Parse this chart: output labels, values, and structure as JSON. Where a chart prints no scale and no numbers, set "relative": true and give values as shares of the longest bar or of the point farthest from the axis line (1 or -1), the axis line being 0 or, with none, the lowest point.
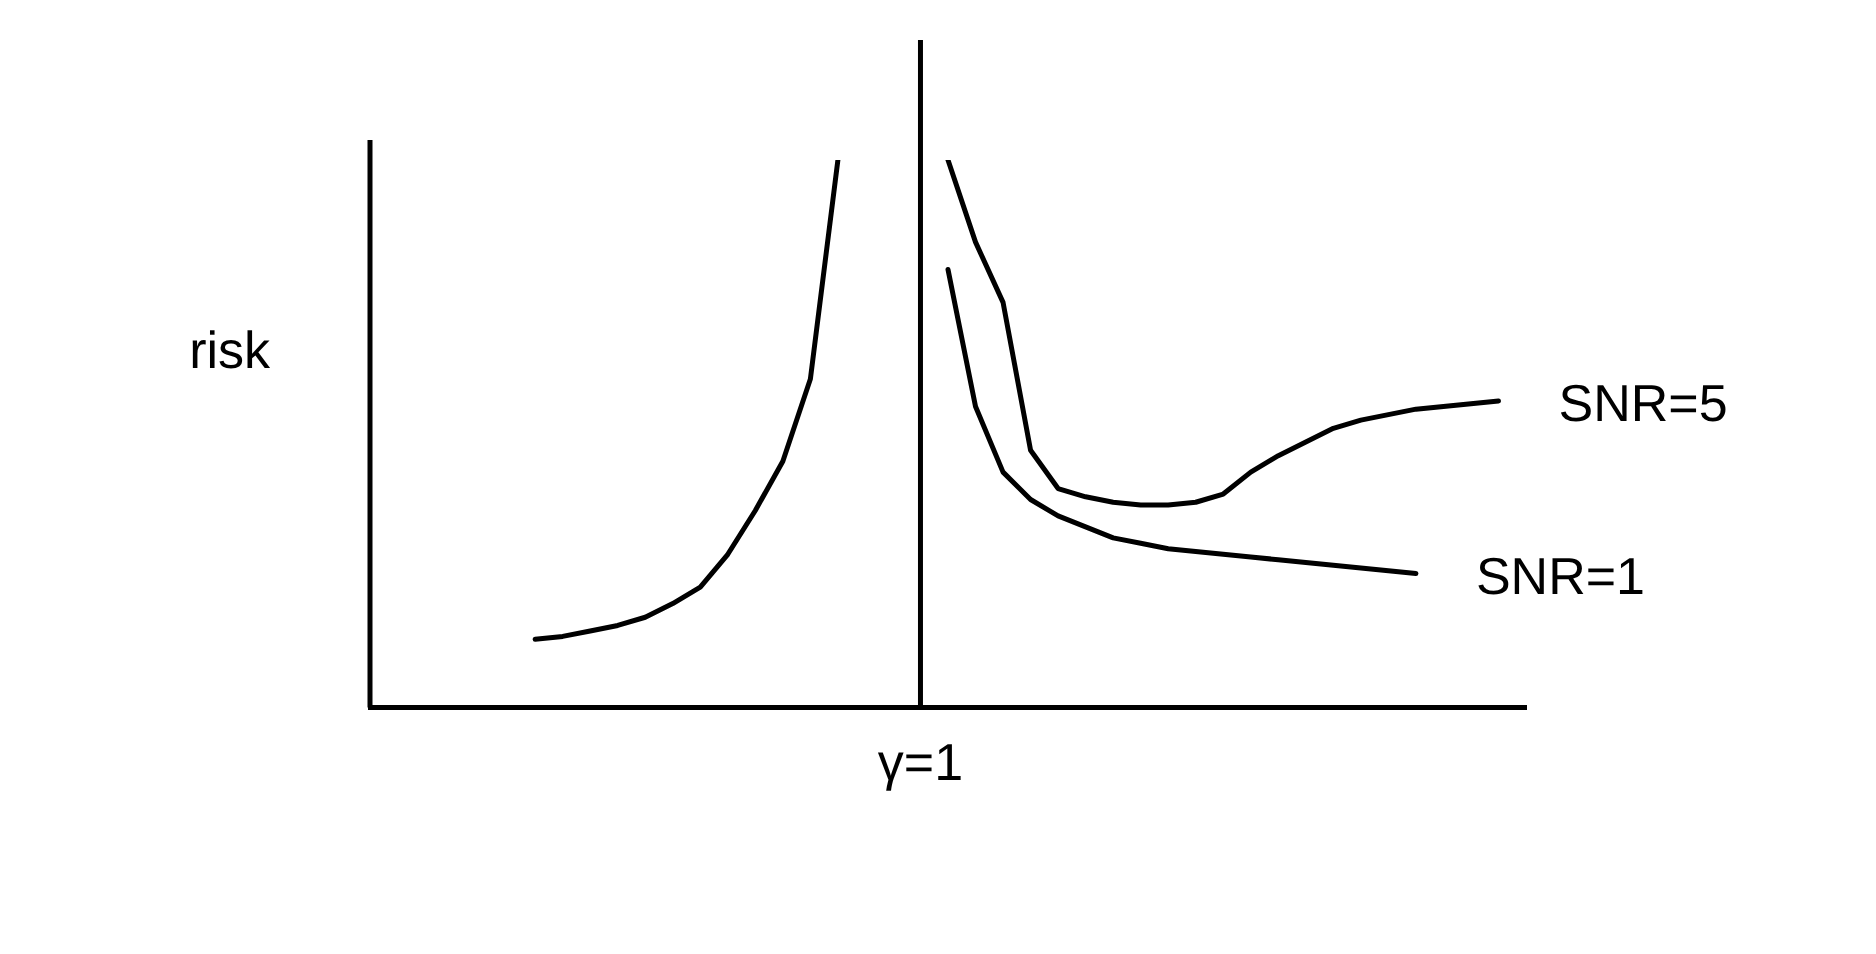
{
  "chart_data": {
    "type": "line",
    "relative": true,
    "ylabel": "risk",
    "legend": false,
    "marker": "none",
    "line_style": "solid",
    "categories": [
      null,
      null,
      null,
      null,
      null,
      null,
      null,
      null,
      null,
      null,
      null,
      null,
      null,
      null,
      null,
      null,
      null,
      null,
      null,
      null,
      null,
      null,
      null,
      null,
      null,
      null,
      null,
      null,
      null,
      null,
      null,
      null,
      null,
      null,
      null,
      null,
      null,
      null,
      null,
      null,
      null,
      null,
      null
    ],
    "ref_lines": [
      {
        "axis": "x",
        "value": "γ=1",
        "color": "#000000"
      }
    ],
    "series": [
      {
        "color": "#000000",
        "values": [
          null,
          null,
          null,
          null,
          null,
          null,
          0.125,
          0.13,
          0.14,
          0.15,
          0.165,
          0.19,
          0.22,
          0.28,
          0.36,
          0.45,
          0.6,
          1.0,
          null,
          null,
          null,
          null,
          null,
          null,
          null,
          null,
          null,
          null,
          null,
          null,
          null,
          null,
          null,
          null,
          null,
          null,
          null,
          null,
          null,
          null,
          null,
          null,
          null
        ]
      },
      {
        "name": "SNR=5",
        "color": "#000000",
        "values": [
          null,
          null,
          null,
          null,
          null,
          null,
          null,
          null,
          null,
          null,
          null,
          null,
          null,
          null,
          null,
          null,
          null,
          null,
          null,
          null,
          null,
          1.0,
          0.85,
          0.74,
          0.47,
          0.4,
          0.385,
          0.375,
          0.37,
          0.37,
          0.375,
          0.39,
          0.43,
          0.46,
          0.485,
          0.51,
          0.525,
          0.535,
          0.545,
          0.55,
          0.555,
          0.56,
          null
        ]
      },
      {
        "name": "SNR=1",
        "color": "#000000",
        "values": [
          null,
          null,
          null,
          null,
          null,
          null,
          null,
          null,
          null,
          null,
          null,
          null,
          null,
          null,
          null,
          null,
          null,
          null,
          null,
          null,
          null,
          0.8,
          0.55,
          0.43,
          0.38,
          0.35,
          0.33,
          0.31,
          0.3,
          0.29,
          0.285,
          0.28,
          0.275,
          0.27,
          0.265,
          0.26,
          0.255,
          0.25,
          0.245,
          null,
          null,
          null,
          null
        ]
      }
    ]
  }
}
